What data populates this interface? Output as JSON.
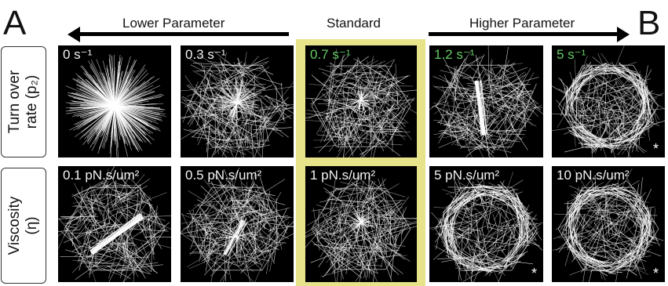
{
  "figure": {
    "panel_a": "A",
    "panel_b": "B",
    "headers": {
      "lower": "Lower Parameter",
      "standard": "Standard",
      "higher": "Higher Parameter"
    },
    "colors": {
      "highlight": "#e6e38a",
      "green_label": "#66cc66",
      "background": "#000000"
    },
    "rows": [
      {
        "label_line1": "Turn over",
        "label_line2": "rate (p₂)",
        "cells": [
          {
            "label": "0 s⁻¹",
            "green": false,
            "star": "",
            "pattern": "radial"
          },
          {
            "label": "0.3 s⁻¹",
            "green": false,
            "star": "",
            "pattern": "hex-radial-center"
          },
          {
            "label": "0.7 s⁻¹",
            "green": true,
            "star": "",
            "pattern": "hex-small-center"
          },
          {
            "label": "1.2 s⁻¹",
            "green": true,
            "star": "",
            "pattern": "hex-vertical-bundle"
          },
          {
            "label": "5 s⁻¹",
            "green": true,
            "star": "*",
            "pattern": "hex-ring"
          }
        ]
      },
      {
        "label_line1": "Viscosity",
        "label_line2": "(η)",
        "cells": [
          {
            "label": "0.1 pN.s/um²",
            "green": false,
            "star": "",
            "pattern": "hex-diagonal-bundle"
          },
          {
            "label": "0.5 pN.s/um²",
            "green": false,
            "star": "",
            "pattern": "hex-aster"
          },
          {
            "label": "1 pN.s/um²",
            "green": false,
            "star": "",
            "pattern": "hex-small-center"
          },
          {
            "label": "5 pN.s/um²",
            "green": false,
            "star": "*",
            "pattern": "hex-ring"
          },
          {
            "label": "10 pN.s/um²",
            "green": false,
            "star": "*",
            "pattern": "hex-ring"
          }
        ]
      }
    ]
  }
}
